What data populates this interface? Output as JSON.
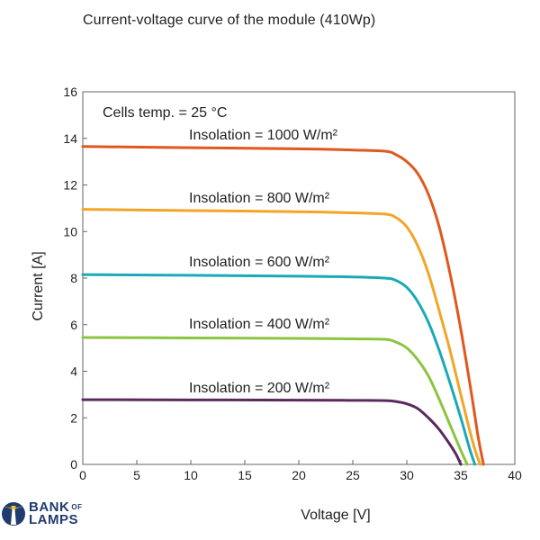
{
  "chart_data": {
    "type": "line",
    "title": "Current-voltage curve of the module (410Wp)",
    "xlabel": "Voltage  [V]",
    "ylabel": "Current  [A]",
    "xlim": [
      0,
      40
    ],
    "ylim": [
      0,
      16
    ],
    "xticks": [
      0,
      5,
      10,
      15,
      20,
      25,
      30,
      35,
      40
    ],
    "yticks": [
      0,
      2,
      4,
      6,
      8,
      10,
      12,
      14,
      16
    ],
    "grid": false,
    "annotation": "Cells temp. = 25 °C",
    "series": [
      {
        "name": "Insolation = 1000 W/m²",
        "color": "#e0581e",
        "x": [
          0,
          10,
          20,
          25,
          28,
          29,
          30,
          31,
          32,
          33,
          34,
          35,
          36,
          36.6,
          37.1
        ],
        "y": [
          13.65,
          13.6,
          13.55,
          13.5,
          13.45,
          13.3,
          13.0,
          12.5,
          11.6,
          10.2,
          8.2,
          5.8,
          3.0,
          1.2,
          0
        ]
      },
      {
        "name": "Insolation = 800 W/m²",
        "color": "#f2a526",
        "x": [
          0,
          10,
          20,
          25,
          28,
          29,
          30,
          31,
          32,
          33,
          34,
          35,
          35.8,
          36.4,
          36.8
        ],
        "y": [
          10.95,
          10.9,
          10.85,
          10.8,
          10.75,
          10.6,
          10.2,
          9.4,
          8.2,
          6.6,
          4.9,
          3.0,
          1.5,
          0.5,
          0
        ]
      },
      {
        "name": "Insolation = 600 W/m²",
        "color": "#1ba9b8",
        "x": [
          0,
          10,
          20,
          25,
          28,
          29,
          30,
          31,
          32,
          33,
          34,
          35,
          35.8,
          36.3
        ],
        "y": [
          8.15,
          8.12,
          8.08,
          8.05,
          8.0,
          7.9,
          7.6,
          7.0,
          6.1,
          4.9,
          3.5,
          2.0,
          0.7,
          0
        ]
      },
      {
        "name": "Insolation = 400 W/m²",
        "color": "#8cc43f",
        "x": [
          0,
          10,
          20,
          25,
          28,
          29,
          30,
          31,
          32,
          33,
          34,
          35,
          35.6
        ],
        "y": [
          5.45,
          5.43,
          5.41,
          5.39,
          5.37,
          5.25,
          5.0,
          4.5,
          3.8,
          2.8,
          1.7,
          0.6,
          0
        ]
      },
      {
        "name": "Insolation = 200 W/m²",
        "color": "#5b2a5c",
        "x": [
          0,
          10,
          20,
          25,
          28,
          29,
          30,
          31,
          32,
          33,
          34,
          34.6,
          35.0
        ],
        "y": [
          2.78,
          2.77,
          2.76,
          2.75,
          2.74,
          2.7,
          2.6,
          2.4,
          2.0,
          1.5,
          0.85,
          0.4,
          0
        ]
      }
    ]
  },
  "logo": {
    "line1": "BANK",
    "of": "OF",
    "line2": "LAMPS"
  }
}
